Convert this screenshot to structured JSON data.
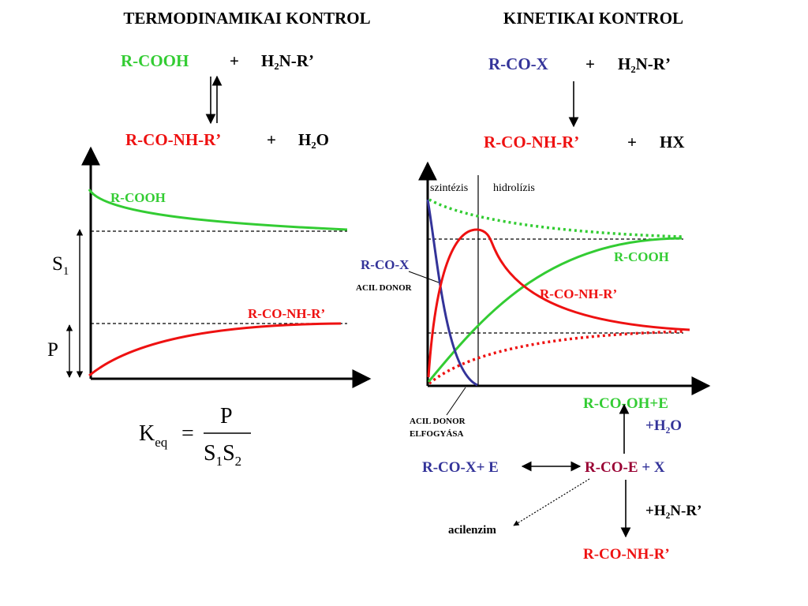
{
  "colors": {
    "green": "#33cc33",
    "red": "#ee1111",
    "blue": "#333399",
    "black": "#000000",
    "dark_red": "#990033"
  },
  "left": {
    "title": "TERMODINAMIKAI  KONTROL",
    "eq_reactant": "R-COOH",
    "eq_plus1": "+",
    "eq_amine": "H₂N-R’",
    "eq_product": "R-CO-NH-R’",
    "eq_plus2": "+",
    "eq_water": "H₂O",
    "curve_cooh_label": "R-COOH",
    "curve_amide_label": "R-CO-NH-R’",
    "s1_label": "S",
    "s1_sub": "1",
    "p_label": "P",
    "formula": {
      "k": "K",
      "k_sub": "eq",
      "equals": "=",
      "numerator": "P",
      "s1": "S",
      "s1_sub": "1",
      "s2": "S",
      "s2_sub": "2"
    }
  },
  "right": {
    "title": "KINETIKAI  KONTROL",
    "eq_reactant": "R-CO-X",
    "eq_plus1": "+",
    "eq_amine": "H₂N-R’",
    "eq_product": "R-CO-NH-R’",
    "eq_plus2": "+",
    "eq_hx": "HX",
    "phase_synthesis": "szintézis",
    "phase_hydrolysis": "hidrolízis",
    "label_rcox": "R-CO-X",
    "label_acyl_donor": "ACIL  DONOR",
    "label_cooh": "R-COOH",
    "label_amide": "R-CO-NH-R’",
    "donor_consumed_line1": "ACIL  DONOR",
    "donor_consumed_line2": "ELFOGYÁSA",
    "mech_hydrolysis_product": "R-CO-OH+E",
    "mech_water": "+H₂O",
    "mech_rcox_e": "R-CO-X+ E",
    "mech_acyl_enzyme_a": "R-CO-E",
    "mech_acyl_enzyme_b": " + X",
    "mech_amine": "+H₂N-R’",
    "mech_acylenzyme_label": "acilenzim",
    "mech_amide_product": "R-CO-NH-R’"
  }
}
